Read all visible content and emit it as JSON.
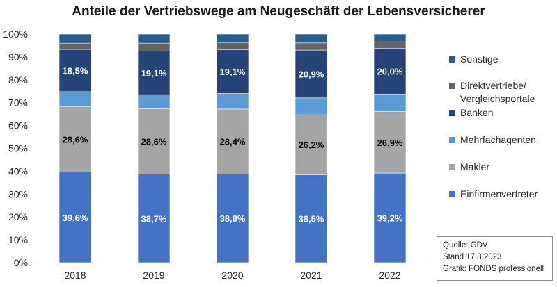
{
  "chart_data": {
    "type": "bar",
    "stacked": true,
    "title": "Anteile der Vertriebswege am Neugeschäft der Lebensversicherer",
    "xlabel": "",
    "ylabel": "",
    "ylim": [
      0,
      100
    ],
    "y_ticks": [
      "0%",
      "10%",
      "20%",
      "30%",
      "40%",
      "50%",
      "60%",
      "70%",
      "80%",
      "90%",
      "100%"
    ],
    "grid": false,
    "legend_position": "right",
    "categories": [
      "2018",
      "2019",
      "2020",
      "2021",
      "2022"
    ],
    "series": [
      {
        "name": "Einfirmenvertreter",
        "color": "#4472c4",
        "label_color": "#ffffff",
        "values": [
          39.6,
          38.7,
          38.8,
          38.5,
          39.2
        ],
        "labels": [
          "39,6%",
          "38,7%",
          "38,8%",
          "38,5%",
          "39,2%"
        ]
      },
      {
        "name": "Makler",
        "color": "#a5a5a5",
        "label_color": "#000000",
        "values": [
          28.6,
          28.6,
          28.4,
          26.2,
          26.9
        ],
        "labels": [
          "28,6%",
          "28,6%",
          "28,4%",
          "26,2%",
          "26,9%"
        ]
      },
      {
        "name": "Mehrfachagenten",
        "color": "#5b9bd5",
        "label_color": "#ffffff",
        "values": [
          6.6,
          6.2,
          6.8,
          7.4,
          7.6
        ],
        "labels": [
          "",
          "",
          "",
          "",
          ""
        ]
      },
      {
        "name": "Banken",
        "color": "#264478",
        "label_color": "#ffffff",
        "values": [
          18.5,
          19.1,
          19.1,
          20.9,
          20.0
        ],
        "labels": [
          "18,5%",
          "19,1%",
          "19,1%",
          "20,9%",
          "20,0%"
        ]
      },
      {
        "name": "Direktvertriebe/ Vergleichsportale",
        "color": "#636363",
        "label_color": "#ffffff",
        "values": [
          2.7,
          3.4,
          3.2,
          3.1,
          2.9
        ],
        "labels": [
          "",
          "",
          "",
          "",
          ""
        ]
      },
      {
        "name": "Sonstige",
        "color": "#255e91",
        "label_color": "#ffffff",
        "values": [
          4.0,
          4.0,
          3.7,
          3.9,
          3.4
        ],
        "labels": [
          "",
          "",
          "",
          "",
          ""
        ]
      }
    ]
  },
  "legend": {
    "items": [
      {
        "label": "Sonstige",
        "color": "#255e91"
      },
      {
        "label_line1": "Direktvertriebe/",
        "label_line2": "Vergleichsportale",
        "color": "#636363"
      },
      {
        "label": "Banken",
        "color": "#264478"
      },
      {
        "label": "Mehrfachagenten",
        "color": "#5b9bd5"
      },
      {
        "label": "Makler",
        "color": "#a5a5a5"
      },
      {
        "label": "Einfirmenvertreter",
        "color": "#4472c4"
      }
    ]
  },
  "source_box": {
    "line1": "Quelle: GDV",
    "line2": "Stand 17.8.2023",
    "line3": "Grafik: FONDS professionell"
  }
}
